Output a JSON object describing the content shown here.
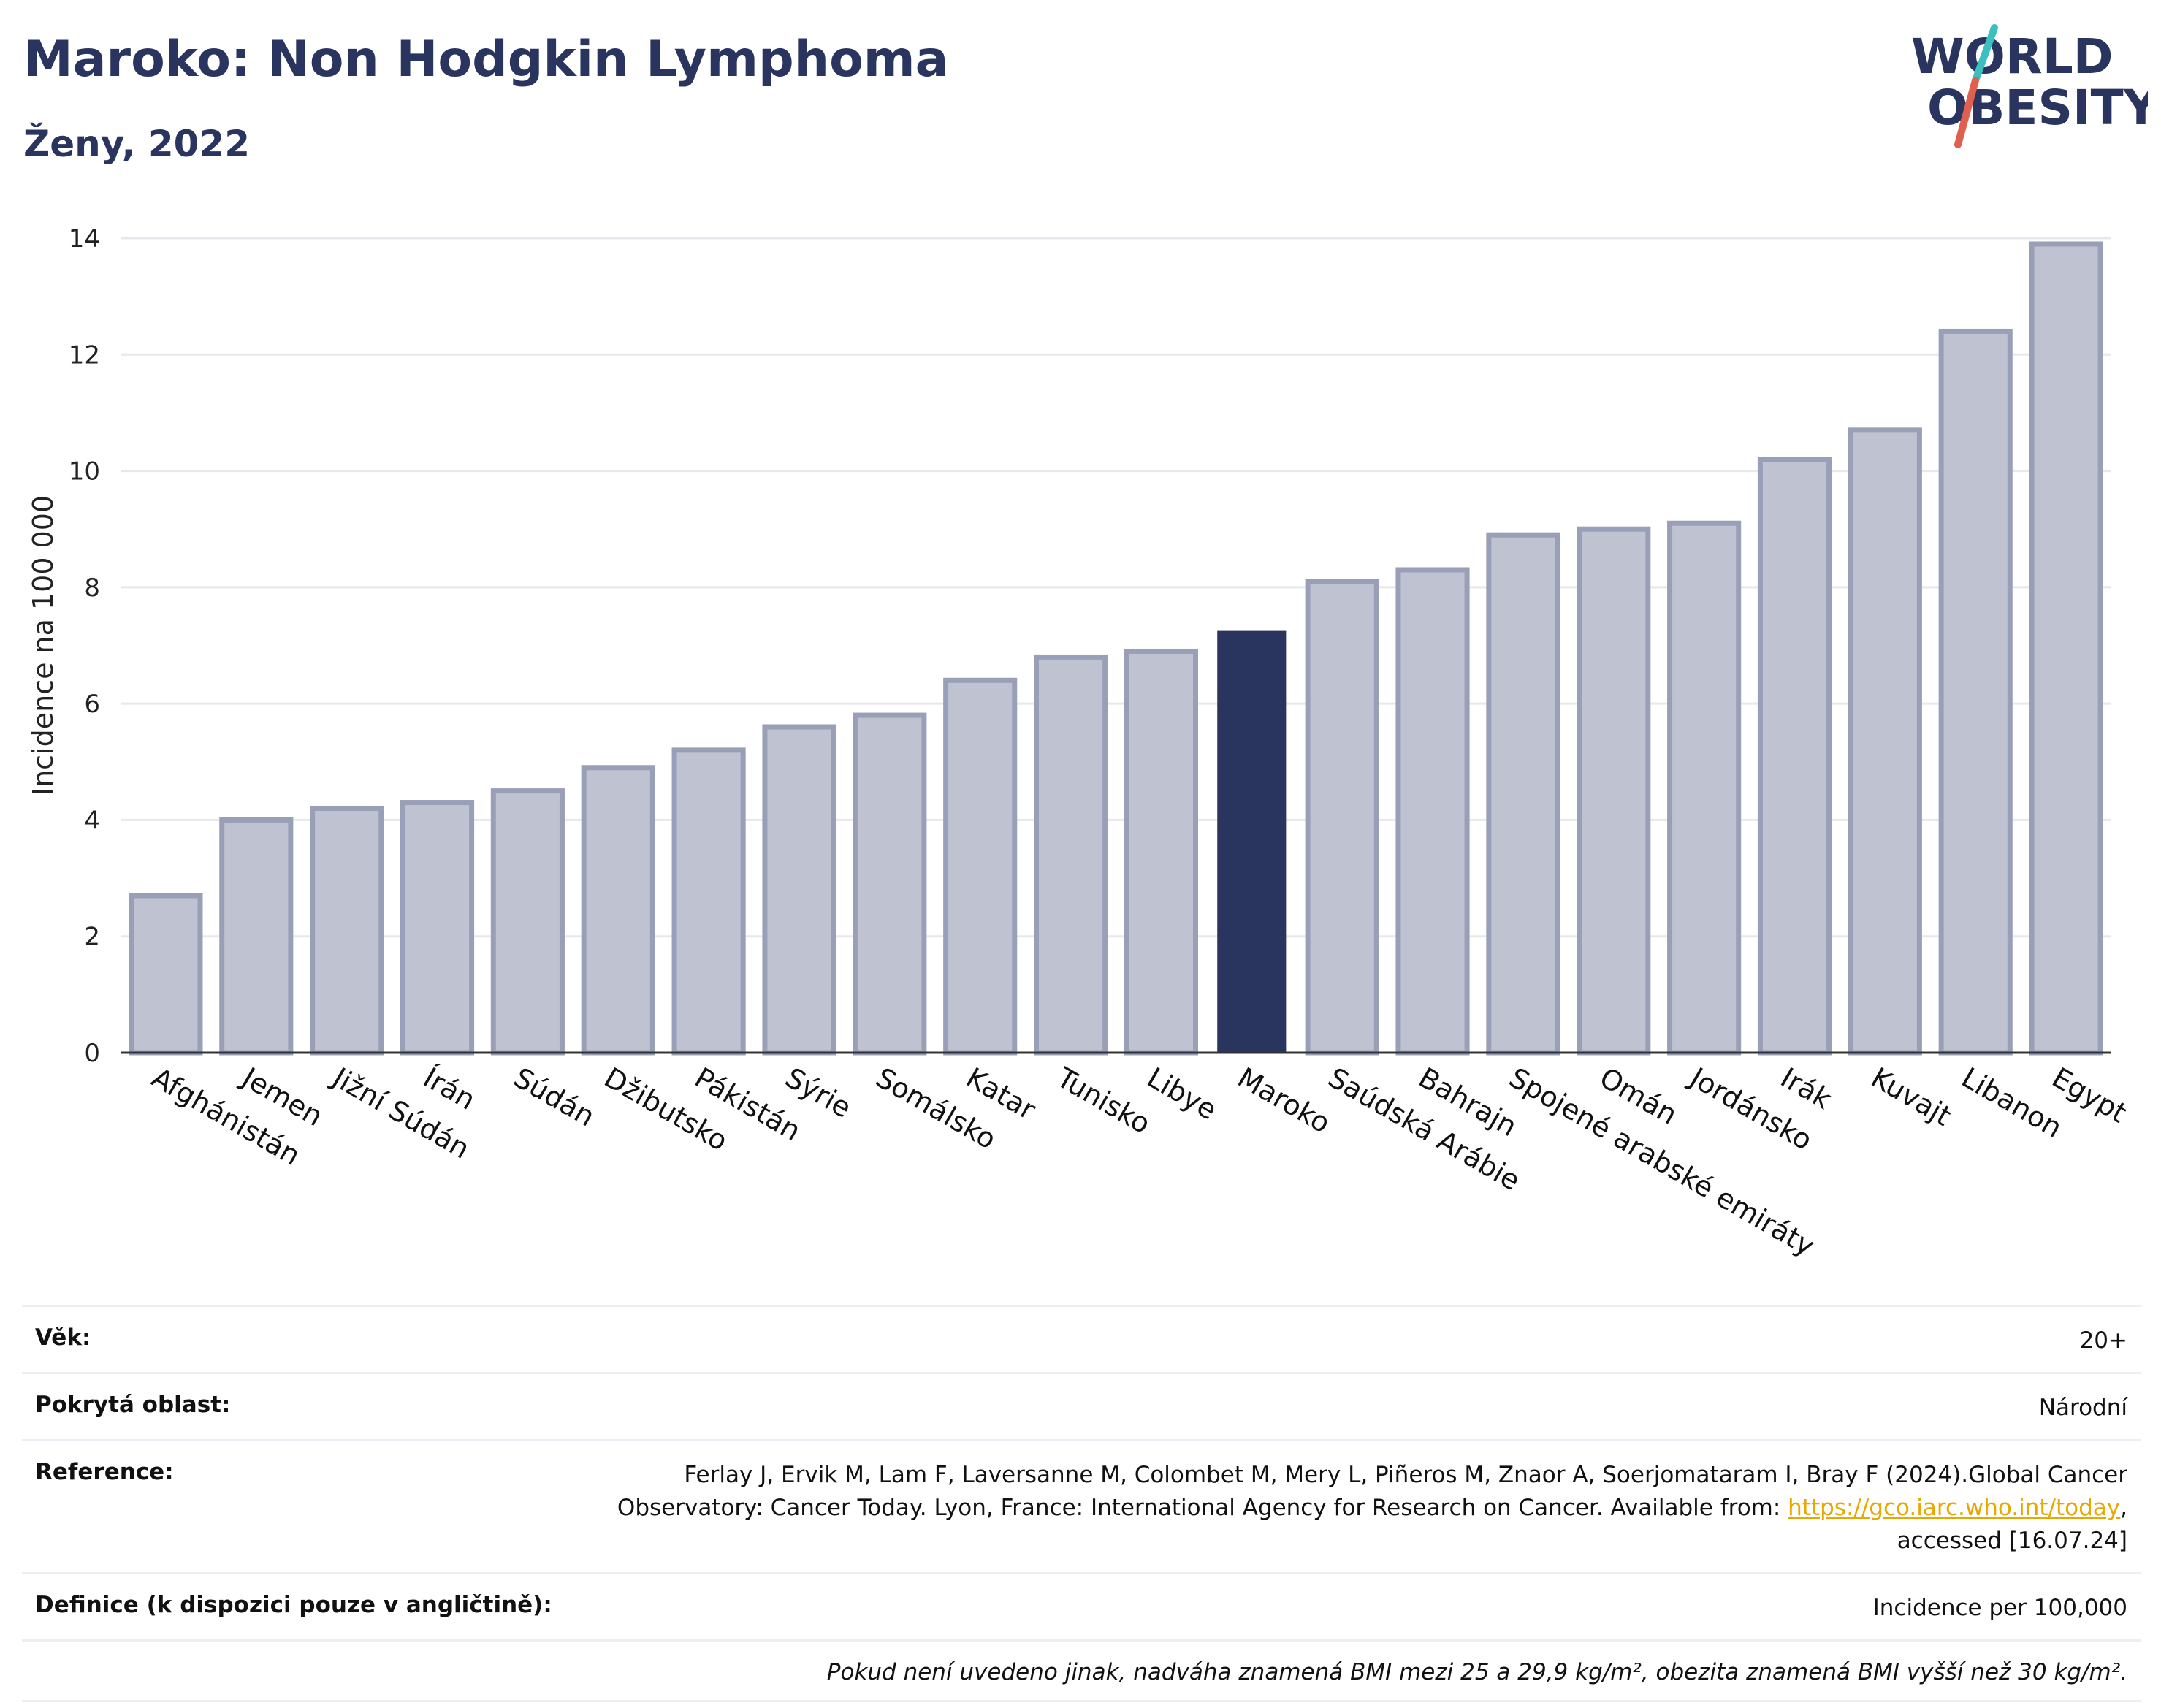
{
  "header": {
    "title": "Maroko: Non Hodgkin Lymphoma",
    "subtitle": "Ženy, 2022"
  },
  "logo": {
    "line1": "WORLD",
    "line2": "OBESITY",
    "icon": "world-obesity-logo"
  },
  "colors": {
    "highlight": "#2a355f",
    "bar_fill": "#bfc2d1",
    "bar_stroke": "#9a9fb8",
    "grid": "#e6e8ee",
    "logo_teal": "#3bbfbf",
    "logo_red": "#e0604f",
    "link": "#e8a800"
  },
  "chart_data": {
    "type": "bar",
    "title": "Maroko: Non Hodgkin Lymphoma",
    "subtitle": "Ženy, 2022",
    "ylabel": "Incidence na 100 000",
    "xlabel": "",
    "ylim": [
      0,
      14
    ],
    "yticks": [
      0,
      2,
      4,
      6,
      8,
      10,
      12,
      14
    ],
    "grid": true,
    "highlight": "Maroko",
    "categories": [
      "Afghánistán",
      "Jemen",
      "Jižní Súdán",
      "Írán",
      "Súdán",
      "Džibutsko",
      "Pákistán",
      "Sýrie",
      "Somálsko",
      "Katar",
      "Tunisko",
      "Libye",
      "Maroko",
      "Saúdská Arábie",
      "Bahrajn",
      "Spojené arabské emiráty",
      "Omán",
      "Jordánsko",
      "Irák",
      "Kuvajt",
      "Libanon",
      "Egypt"
    ],
    "values": [
      2.7,
      4.0,
      4.2,
      4.3,
      4.5,
      4.9,
      5.2,
      5.6,
      5.8,
      6.4,
      6.8,
      6.9,
      7.25,
      8.1,
      8.3,
      8.9,
      9.0,
      9.1,
      10.2,
      10.7,
      12.4,
      13.9
    ]
  },
  "info": {
    "age_label": "Věk:",
    "age_value": "20+",
    "area_label": "Pokrytá oblast:",
    "area_value": "Národní",
    "reference_label": "Reference:",
    "reference_text": "Ferlay J, Ervik M, Lam F, Laversanne M, Colombet M, Mery L, Piñeros M, Znaor A, Soerjomataram I, Bray F (2024).Global Cancer Observatory: Cancer Today. Lyon, France: International Agency for Research on Cancer. Available from: ",
    "reference_link": "https://gco.iarc.who.int/today",
    "reference_tail": ", accessed [16.07.24]",
    "definition_label": "Definice (k dispozici pouze v angličtině):",
    "definition_value": "Incidence per 100,000",
    "note": "Pokud není uvedeno jinak, nadváha znamená BMI mezi 25 a 29,9 kg/m², obezita znamená BMI vyšší než 30 kg/m²."
  }
}
